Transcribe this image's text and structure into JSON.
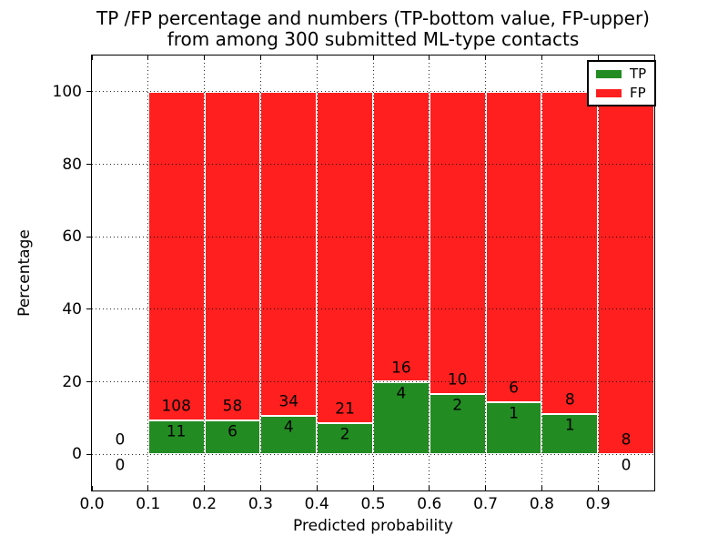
{
  "title": {
    "line1": "TP /FP percentage and numbers (TP-bottom value, FP-upper)",
    "line2": "from among 300 submitted ML-type contacts"
  },
  "x_axis": {
    "label": "Predicted probability",
    "ticks": [
      "0.0",
      "0.1",
      "0.2",
      "0.3",
      "0.4",
      "0.5",
      "0.6",
      "0.7",
      "0.8",
      "0.9"
    ],
    "range": [
      0.0,
      1.0
    ],
    "grid": true
  },
  "y_axis": {
    "label": "Percentage",
    "ticks": [
      0,
      20,
      40,
      60,
      80,
      100
    ],
    "range": [
      -10,
      110
    ],
    "grid": true
  },
  "legend": {
    "position": "upper right",
    "entries": [
      {
        "label": "TP",
        "color": "#228b22"
      },
      {
        "label": "FP",
        "color": "#ff1f1f"
      }
    ]
  },
  "colors": {
    "tp": "#228b22",
    "fp": "#ff1f1f",
    "grid": "#000000",
    "text": "#000000",
    "background": "#ffffff"
  },
  "chart_data": {
    "type": "bar",
    "stacked": true,
    "note": "Stacked 100% bars of TP vs FP percentage per predicted-probability bin; annotations are raw counts (TP bottom value, FP upper value).",
    "total_contacts": 300,
    "bin_width": 0.1,
    "bins": [
      {
        "x_start": 0.0,
        "tp_count": 0,
        "fp_count": 0,
        "tp_pct": null
      },
      {
        "x_start": 0.1,
        "tp_count": 11,
        "fp_count": 108,
        "tp_pct": 9.2
      },
      {
        "x_start": 0.2,
        "tp_count": 6,
        "fp_count": 58,
        "tp_pct": 9.4
      },
      {
        "x_start": 0.3,
        "tp_count": 4,
        "fp_count": 34,
        "tp_pct": 10.5
      },
      {
        "x_start": 0.4,
        "tp_count": 2,
        "fp_count": 21,
        "tp_pct": 8.7
      },
      {
        "x_start": 0.5,
        "tp_count": 4,
        "fp_count": 16,
        "tp_pct": 20.0
      },
      {
        "x_start": 0.6,
        "tp_count": 2,
        "fp_count": 10,
        "tp_pct": 16.7
      },
      {
        "x_start": 0.7,
        "tp_count": 1,
        "fp_count": 6,
        "tp_pct": 14.3
      },
      {
        "x_start": 0.8,
        "tp_count": 1,
        "fp_count": 8,
        "tp_pct": 11.1
      },
      {
        "x_start": 0.9,
        "tp_count": 0,
        "fp_count": 8,
        "tp_pct": 0.0
      }
    ]
  }
}
